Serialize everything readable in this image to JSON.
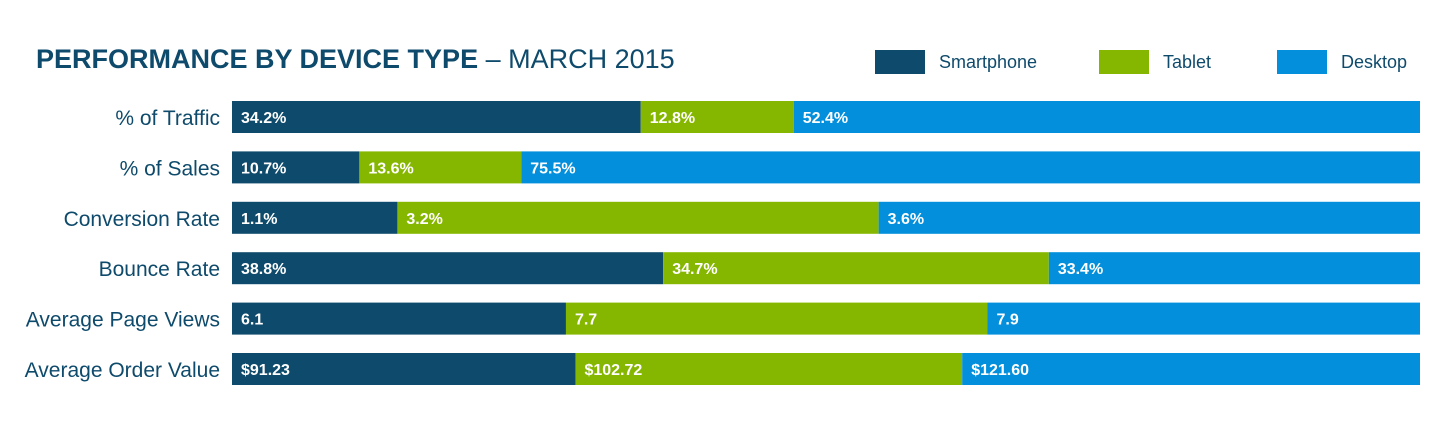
{
  "title": {
    "bold": "PERFORMANCE BY DEVICE TYPE",
    "rest": " – MARCH 2015"
  },
  "legend": [
    {
      "label": "Smartphone",
      "color": "#0e4a6b"
    },
    {
      "label": "Tablet",
      "color": "#86b700"
    },
    {
      "label": "Desktop",
      "color": "#038fdc"
    }
  ],
  "chart_data": {
    "type": "bar",
    "orientation": "horizontal-stacked-100",
    "grid": false,
    "legend_position": "top-right",
    "categories": [
      "% of Traffic",
      "% of Sales",
      "Conversion Rate",
      "Bounce Rate",
      "Average Page Views",
      "Average Order Value"
    ],
    "series": [
      {
        "name": "Smartphone",
        "values": [
          34.2,
          10.7,
          1.1,
          38.8,
          6.1,
          91.23
        ],
        "labels": [
          "34.2%",
          "10.7%",
          "1.1%",
          "38.8%",
          "6.1",
          "$91.23"
        ]
      },
      {
        "name": "Tablet",
        "values": [
          12.8,
          13.6,
          3.2,
          34.7,
          7.7,
          102.72
        ],
        "labels": [
          "12.8%",
          "13.6%",
          "3.2%",
          "34.7%",
          "7.7",
          "$102.72"
        ]
      },
      {
        "name": "Desktop",
        "values": [
          52.4,
          75.5,
          3.6,
          33.4,
          7.9,
          121.6
        ],
        "labels": [
          "52.4%",
          "75.5%",
          "3.6%",
          "33.4%",
          "7.9",
          "$121.60"
        ]
      }
    ]
  }
}
